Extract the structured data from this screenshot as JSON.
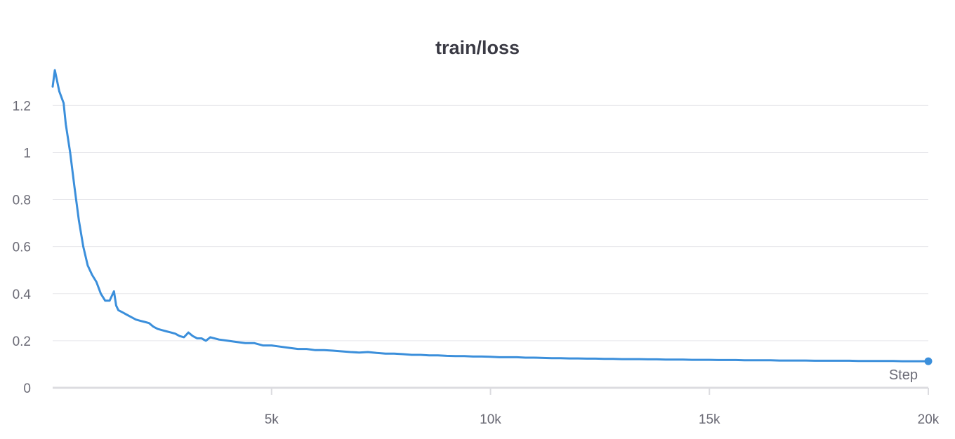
{
  "chart_data": {
    "type": "line",
    "title": "train/loss",
    "xlabel": "Step",
    "ylabel": "",
    "xlim": [
      0,
      20000
    ],
    "ylim": [
      0,
      1.35
    ],
    "x_ticks": [
      5000,
      10000,
      15000,
      20000
    ],
    "x_tick_labels": [
      "5k",
      "10k",
      "15k",
      "20k"
    ],
    "y_ticks": [
      0,
      0.2,
      0.4,
      0.6,
      0.8,
      1.0,
      1.2
    ],
    "y_tick_labels": [
      "0",
      "0.2",
      "0.4",
      "0.6",
      "0.8",
      "1",
      "1.2"
    ],
    "grid": "horizontal",
    "legend": "none",
    "line_color": "#3b8fdb",
    "series": [
      {
        "x": [
          0,
          50,
          150,
          250,
          300,
          400,
          500,
          600,
          700,
          800,
          900,
          1000,
          1100,
          1200,
          1300,
          1400,
          1450,
          1500,
          1600,
          1700,
          1800,
          1900,
          2000,
          2100,
          2200,
          2300,
          2400,
          2500,
          2600,
          2700,
          2800,
          2900,
          3000,
          3100,
          3200,
          3300,
          3400,
          3500,
          3600,
          3800,
          4000,
          4200,
          4400,
          4600,
          4800,
          5000,
          5200,
          5400,
          5600,
          5800,
          6000,
          6200,
          6400,
          6600,
          6800,
          7000,
          7200,
          7400,
          7600,
          7800,
          8000,
          8200,
          8400,
          8600,
          8800,
          9000,
          9200,
          9400,
          9600,
          9800,
          10000,
          10200,
          10400,
          10600,
          10800,
          11000,
          11200,
          11400,
          11600,
          11800,
          12000,
          12200,
          12400,
          12600,
          12800,
          13000,
          13200,
          13400,
          13600,
          13800,
          14000,
          14200,
          14400,
          14600,
          14800,
          15000,
          15200,
          15400,
          15600,
          15800,
          16000,
          16200,
          16400,
          16600,
          16800,
          17000,
          17200,
          17400,
          17600,
          17800,
          18000,
          18200,
          18400,
          18600,
          18800,
          19000,
          19200,
          19400,
          19600,
          19800,
          20000
        ],
        "values": [
          1.28,
          1.35,
          1.26,
          1.21,
          1.12,
          1.0,
          0.85,
          0.71,
          0.6,
          0.52,
          0.48,
          0.45,
          0.4,
          0.37,
          0.37,
          0.41,
          0.35,
          0.33,
          0.32,
          0.31,
          0.3,
          0.29,
          0.285,
          0.28,
          0.275,
          0.26,
          0.25,
          0.245,
          0.24,
          0.235,
          0.23,
          0.22,
          0.215,
          0.235,
          0.22,
          0.21,
          0.21,
          0.2,
          0.215,
          0.205,
          0.2,
          0.195,
          0.19,
          0.19,
          0.18,
          0.18,
          0.175,
          0.17,
          0.165,
          0.165,
          0.16,
          0.16,
          0.158,
          0.155,
          0.152,
          0.15,
          0.152,
          0.148,
          0.145,
          0.145,
          0.143,
          0.14,
          0.14,
          0.138,
          0.138,
          0.136,
          0.135,
          0.135,
          0.133,
          0.133,
          0.132,
          0.13,
          0.13,
          0.13,
          0.128,
          0.128,
          0.127,
          0.126,
          0.126,
          0.125,
          0.125,
          0.124,
          0.124,
          0.123,
          0.123,
          0.122,
          0.122,
          0.122,
          0.121,
          0.121,
          0.12,
          0.12,
          0.12,
          0.119,
          0.119,
          0.119,
          0.118,
          0.118,
          0.118,
          0.117,
          0.117,
          0.117,
          0.117,
          0.116,
          0.116,
          0.116,
          0.116,
          0.115,
          0.115,
          0.115,
          0.115,
          0.115,
          0.114,
          0.114,
          0.114,
          0.114,
          0.114,
          0.113,
          0.113,
          0.113,
          0.113
        ]
      }
    ]
  }
}
